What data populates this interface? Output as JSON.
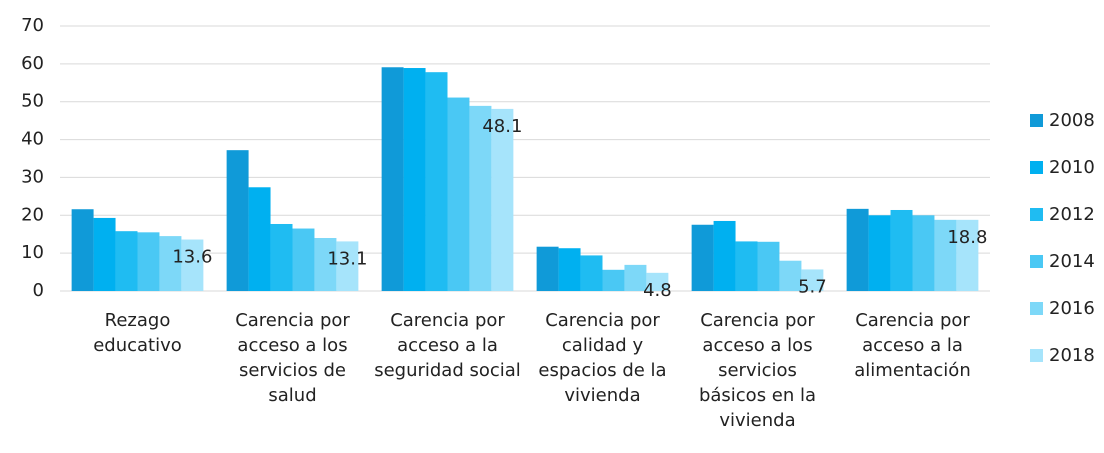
{
  "chart_data": {
    "type": "bar",
    "categories": [
      "Rezago educativo",
      "Carencia por acceso a los servicios de salud",
      "Carencia por acceso a la seguridad social",
      "Carencia por calidad y espacios de la vivienda",
      "Carencia por acceso a los servicios básicos en la vivienda",
      "Carencia por acceso a la alimentación"
    ],
    "series": [
      {
        "name": "2008",
        "color": "#109ad8",
        "values": [
          21.6,
          37.2,
          59.1,
          11.7,
          17.5,
          21.7
        ]
      },
      {
        "name": "2010",
        "color": "#00b0f0",
        "values": [
          19.3,
          27.4,
          58.9,
          11.3,
          18.5,
          20.0
        ]
      },
      {
        "name": "2012",
        "color": "#1fbcf2",
        "values": [
          15.8,
          17.7,
          57.8,
          9.4,
          13.1,
          21.4
        ]
      },
      {
        "name": "2014",
        "color": "#4ac8f4",
        "values": [
          15.5,
          16.5,
          51.1,
          5.6,
          13.0,
          20.0
        ]
      },
      {
        "name": "2016",
        "color": "#7dd8f8",
        "values": [
          14.5,
          14.0,
          48.9,
          6.9,
          8.0,
          18.8
        ]
      },
      {
        "name": "2018",
        "color": "#a6e4fb",
        "values": [
          13.6,
          13.1,
          48.1,
          4.8,
          5.7,
          18.8
        ],
        "show_labels": true
      }
    ],
    "ylim": [
      0,
      70
    ],
    "yticks": [
      0,
      10,
      20,
      30,
      40,
      50,
      60,
      70
    ],
    "grid": true,
    "legend": "right"
  }
}
